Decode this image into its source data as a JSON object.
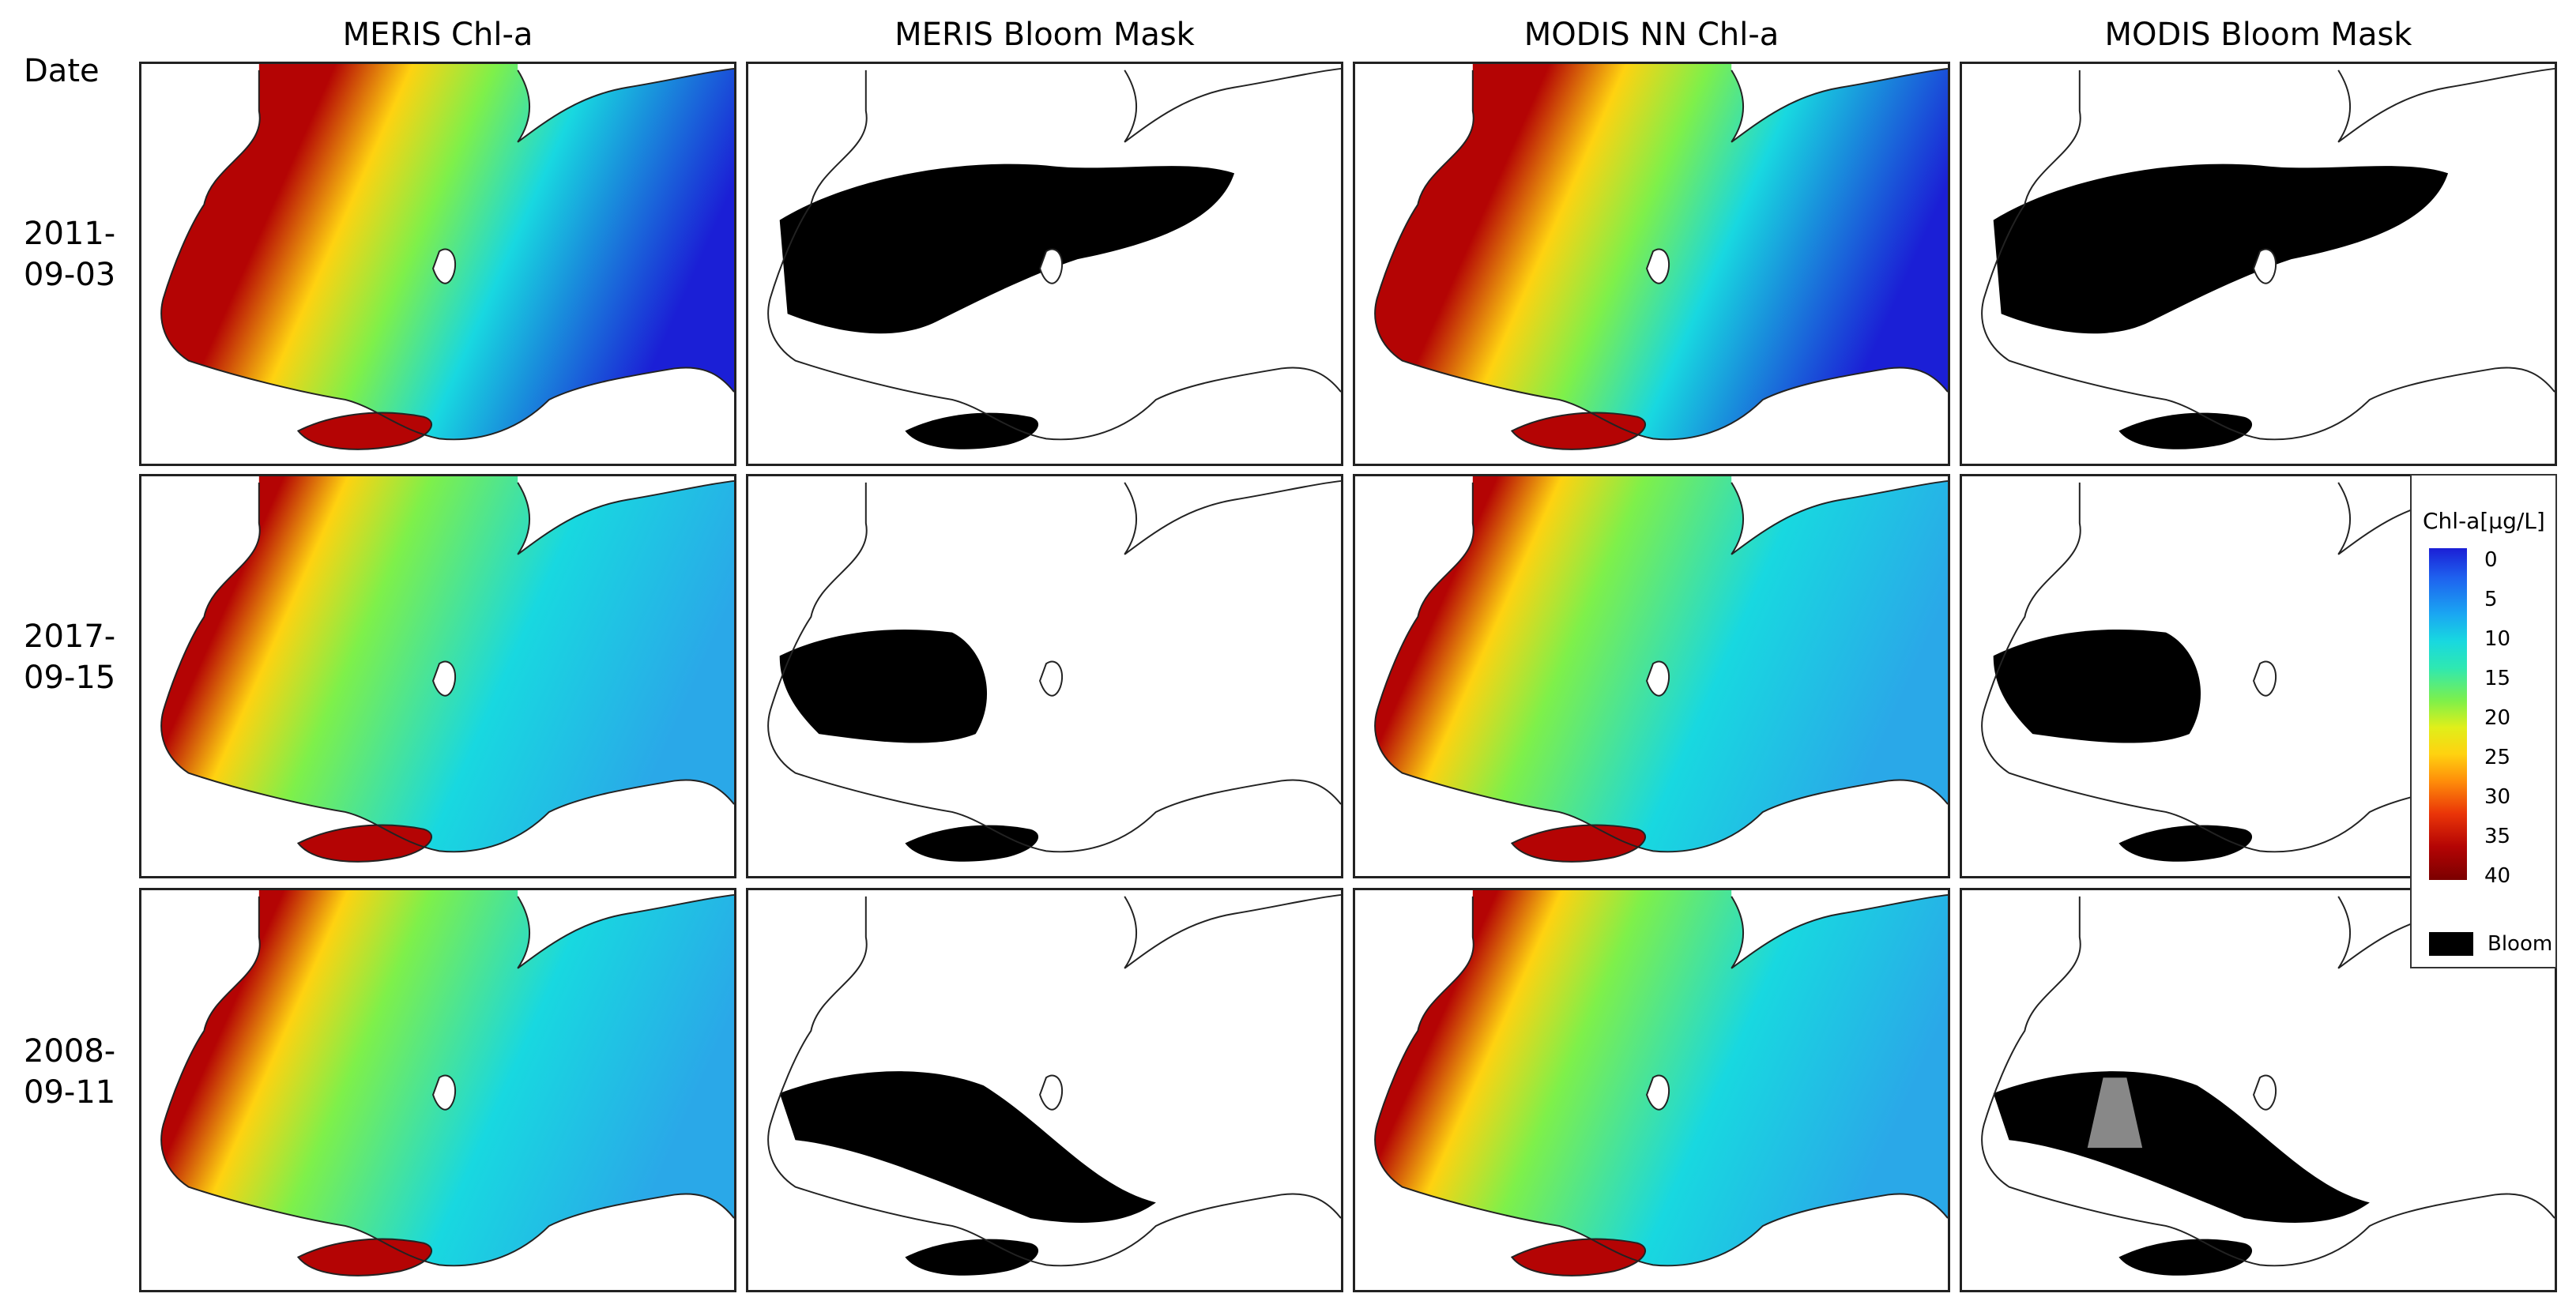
{
  "columns": [
    "MERIS Chl-a",
    "MERIS Bloom Mask",
    "MODIS NN Chl-a",
    "MODIS Bloom Mask"
  ],
  "date_header": "Date",
  "rows": [
    {
      "label": "2011-\n09-03"
    },
    {
      "label": "2017-\n09-15"
    },
    {
      "label": "2008-\n09-11"
    }
  ],
  "legend": {
    "title": "Chl-a[µg/L]",
    "ticks": [
      "0",
      "5",
      "10",
      "15",
      "20",
      "25",
      "30",
      "35",
      "40"
    ],
    "bloom_label": "Bloom",
    "bloom_color": "#000000"
  },
  "colors": {
    "low": "#1b1fd6",
    "mid_low": "#18d8e0",
    "mid": "#7ef04a",
    "mid_high": "#ffd210",
    "high": "#b40404",
    "outline": "#222222",
    "no_data": "#888888"
  }
}
